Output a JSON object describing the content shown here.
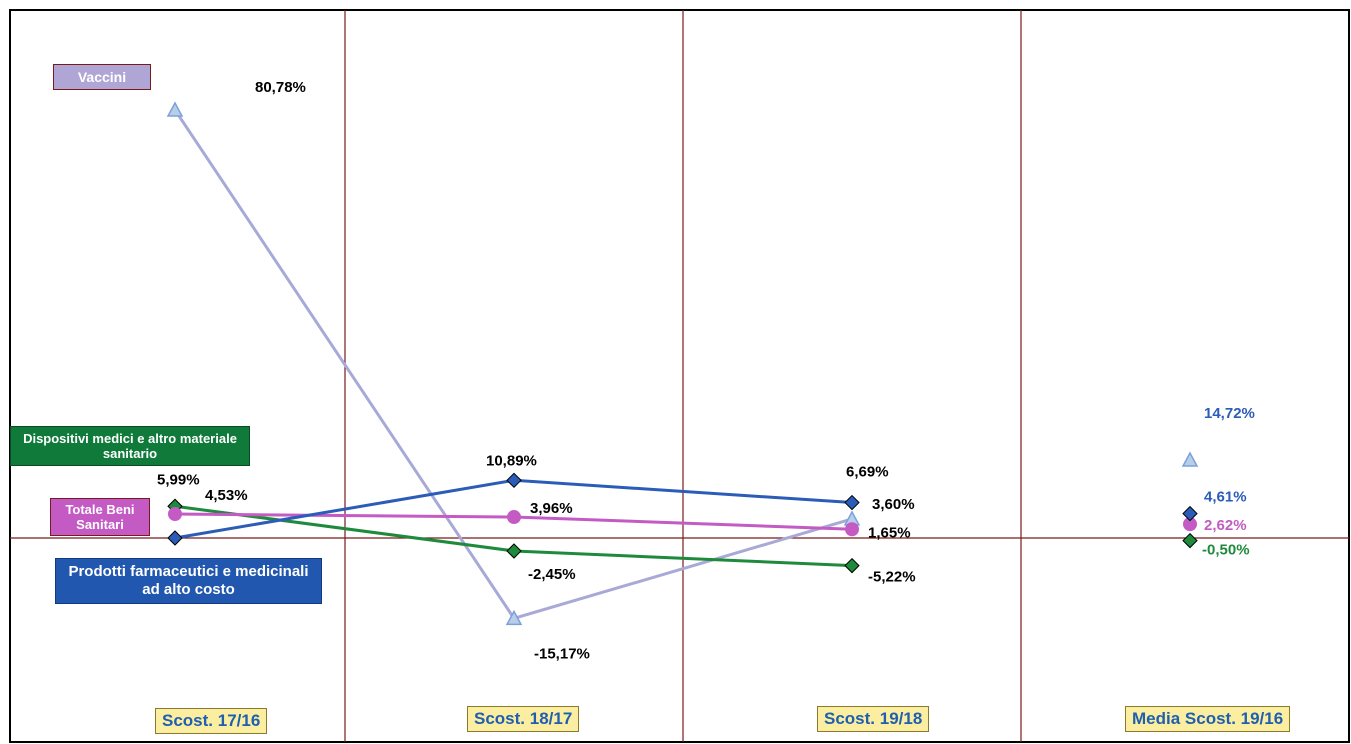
{
  "chart_data": {
    "type": "line",
    "categories": [
      "Scost. 17/16",
      "Scost. 18/17",
      "Scost. 19/18",
      "Media Scost. 19/16"
    ],
    "series": [
      {
        "name": "Vaccini",
        "values": [
          80.78,
          -15.17,
          3.6,
          14.72
        ],
        "labels": [
          "80,78%",
          "-15,17%",
          "3,60%",
          "14,72%"
        ],
        "color": "#a9a9d8",
        "marker": "triangle",
        "marker_color": "#7aa2d8",
        "line_through_last": false
      },
      {
        "name": "Dispositivi medici e altro materiale sanitario",
        "values": [
          5.99,
          -2.45,
          -5.22,
          -0.5
        ],
        "labels": [
          "5,99%",
          "-2,45%",
          "-5,22%",
          "-0,50%"
        ],
        "color": "#1e8a3c",
        "marker": "diamond",
        "marker_color": "#1e8a3c",
        "line_through_last": false
      },
      {
        "name": "Totale Beni Sanitari",
        "values": [
          4.53,
          3.96,
          1.65,
          2.62
        ],
        "labels": [
          "4,53%",
          "3,96%",
          "1,65%",
          "2,62%"
        ],
        "color": "#c45bc4",
        "marker": "circle",
        "marker_color": "#c45bc4",
        "line_through_last": false
      },
      {
        "name": "Prodotti farmaceutici e medicinali ad alto costo",
        "values": [
          0.0,
          10.89,
          6.69,
          4.61
        ],
        "labels": [
          "",
          "10,89%",
          "6,69%",
          "4,61%"
        ],
        "color": "#2a5cb8",
        "marker": "diamond",
        "marker_color": "#2a5cb8",
        "line_through_last": false
      }
    ],
    "legend_boxes": {
      "vaccini": "Vaccini",
      "dispositivi": "Dispositivi medici e altro materiale sanitario",
      "totale": "Totale Beni Sanitari",
      "prodotti": "Prodotti farmaceutici e medicinali ad alto costo"
    },
    "ylim": [
      -28,
      92
    ],
    "grid": true,
    "colors": {
      "gridline": "#7a1a1a",
      "label_box": "#fbeea0",
      "label_text": "#1f5fb0"
    }
  }
}
